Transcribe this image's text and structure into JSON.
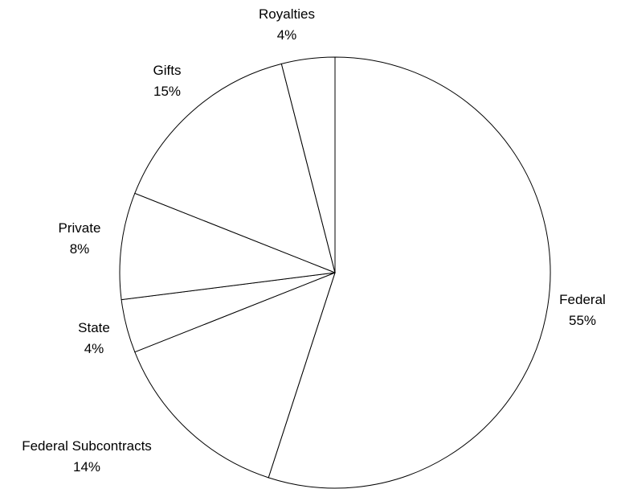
{
  "chart_data": {
    "type": "pie",
    "start_angle_deg": 0,
    "direction": "clockwise",
    "slices": [
      {
        "name": "Federal",
        "value": 55,
        "label": "55%"
      },
      {
        "name": "Federal Subcontracts",
        "value": 14,
        "label": "14%"
      },
      {
        "name": "State",
        "value": 4,
        "label": "4%"
      },
      {
        "name": "Private",
        "value": 8,
        "label": "8%"
      },
      {
        "name": "Gifts",
        "value": 15,
        "label": "15%"
      },
      {
        "name": "Royalties",
        "value": 4,
        "label": "4%"
      }
    ],
    "colors": {
      "fill": "#ffffff",
      "stroke": "#000000"
    },
    "legend": "none",
    "title": ""
  }
}
